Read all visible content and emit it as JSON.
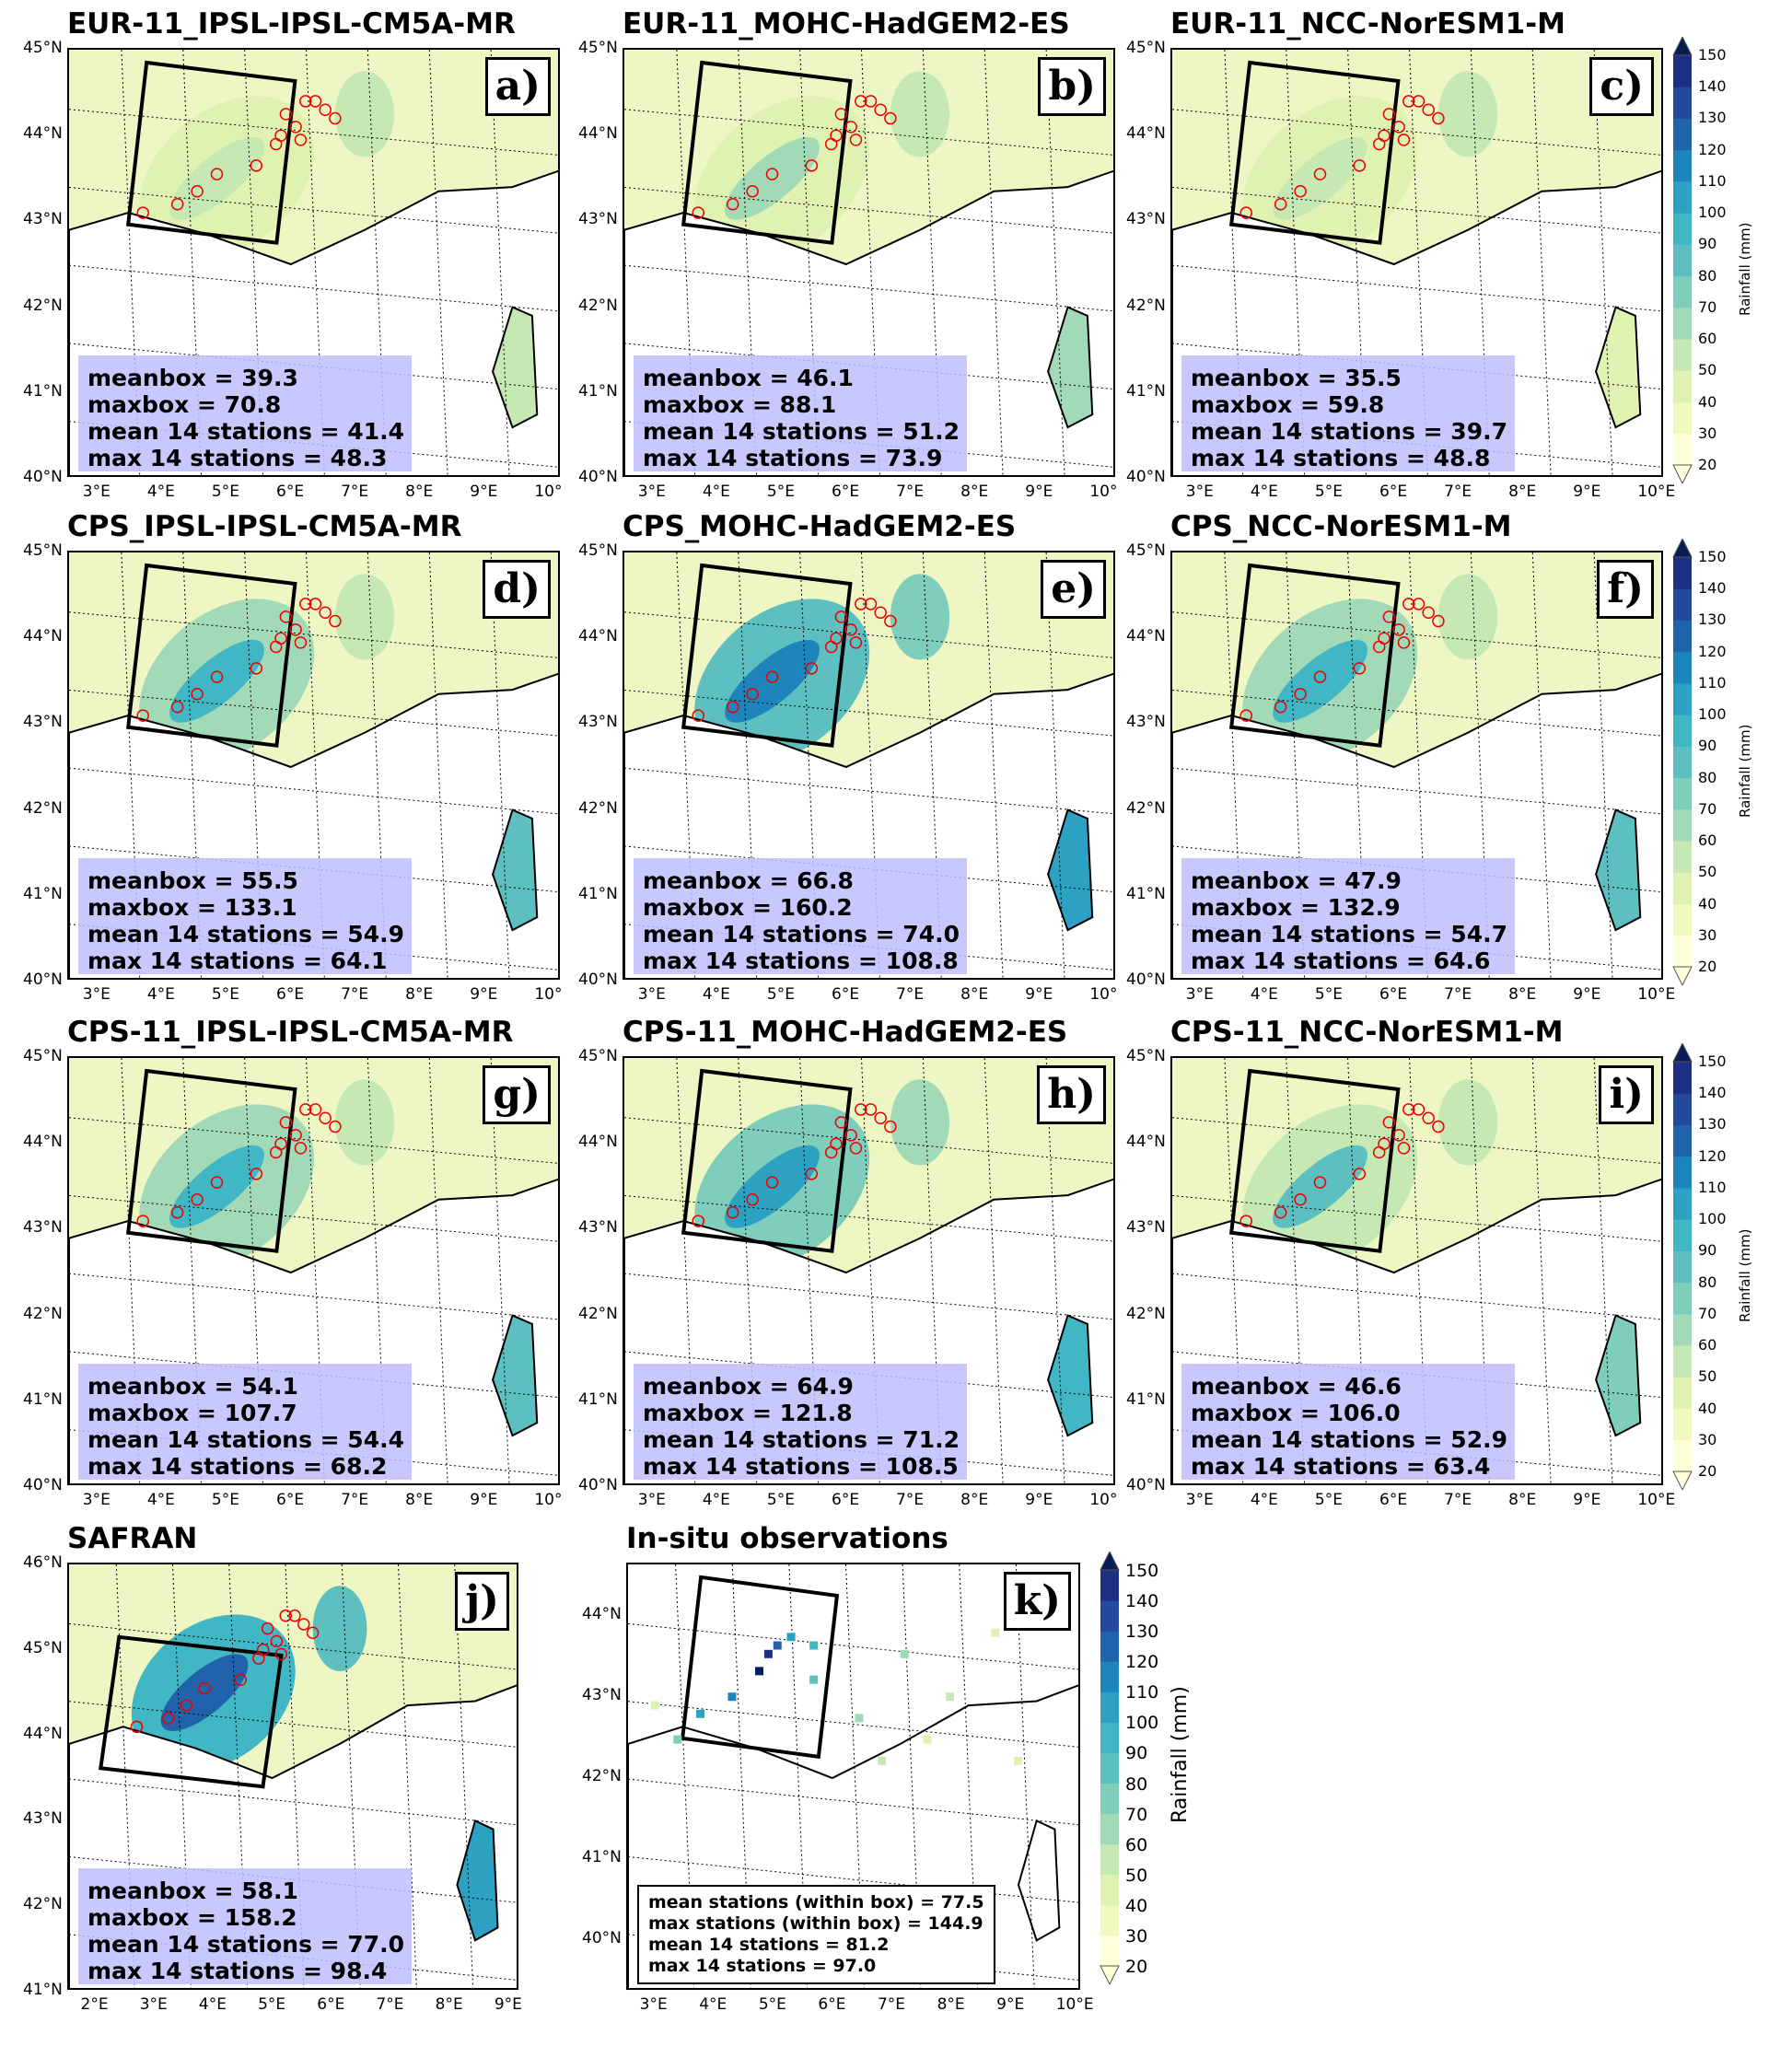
{
  "colorbar": {
    "label": "Rainfall (mm)",
    "ticks": [
      20,
      30,
      40,
      50,
      60,
      70,
      80,
      90,
      100,
      110,
      120,
      130,
      140,
      150
    ],
    "colors": [
      "#ffffd9",
      "#f1f9bf",
      "#e0f2b2",
      "#c6e9b4",
      "#a2dab7",
      "#7fcdbb",
      "#5ebfc0",
      "#41b6c4",
      "#2ca1c2",
      "#1d85bb",
      "#2163aa",
      "#234a9c",
      "#1d2f83",
      "#081d58"
    ]
  },
  "panels": [
    {
      "title": "EUR-11_IPSL-IPSL-CM5A-MR",
      "label": "a)",
      "intensity": 0.25,
      "stats": [
        "meanbox = 39.3",
        "maxbox = 70.8",
        "mean 14 stations = 41.4",
        "max 14 stations = 48.3"
      ],
      "lat": [
        "45°N",
        "44°N",
        "43°N",
        "42°N",
        "41°N",
        "40°N"
      ],
      "lon": [
        "3°E",
        "4°E",
        "5°E",
        "6°E",
        "7°E",
        "8°E",
        "9°E",
        "10°"
      ]
    },
    {
      "title": "EUR-11_MOHC-HadGEM2-ES",
      "label": "b)",
      "intensity": 0.35,
      "stats": [
        "meanbox = 46.1",
        "maxbox = 88.1",
        "mean 14 stations = 51.2",
        "max 14 stations = 73.9"
      ],
      "lat": [
        "45°N",
        "44°N",
        "43°N",
        "42°N",
        "41°N",
        "40°N"
      ],
      "lon": [
        "3°E",
        "4°E",
        "5°E",
        "6°E",
        "7°E",
        "8°E",
        "9°E",
        "10°"
      ]
    },
    {
      "title": "EUR-11_NCC-NorESM1-M",
      "label": "c)",
      "intensity": 0.2,
      "stats": [
        "meanbox = 35.5",
        "maxbox = 59.8",
        "mean 14 stations = 39.7",
        "max 14 stations = 48.8"
      ],
      "lat": [
        "45°N",
        "44°N",
        "43°N",
        "42°N",
        "41°N",
        "40°N"
      ],
      "lon": [
        "3°E",
        "4°E",
        "5°E",
        "6°E",
        "7°E",
        "8°E",
        "9°E",
        "10°E"
      ]
    },
    {
      "title": "CPS_IPSL-IPSL-CM5A-MR",
      "label": "d)",
      "intensity": 0.6,
      "stats": [
        "meanbox = 55.5",
        "maxbox = 133.1",
        "mean 14 stations = 54.9",
        "max 14 stations = 64.1"
      ],
      "lat": [
        "45°N",
        "44°N",
        "43°N",
        "42°N",
        "41°N",
        "40°N"
      ],
      "lon": [
        "3°E",
        "4°E",
        "5°E",
        "6°E",
        "7°E",
        "8°E",
        "9°E",
        "10°"
      ]
    },
    {
      "title": "CPS_MOHC-HadGEM2-ES",
      "label": "e)",
      "intensity": 0.75,
      "stats": [
        "meanbox = 66.8",
        "maxbox = 160.2",
        "mean 14 stations = 74.0",
        "max 14 stations = 108.8"
      ],
      "lat": [
        "45°N",
        "44°N",
        "43°N",
        "42°N",
        "41°N",
        "40°N"
      ],
      "lon": [
        "3°E",
        "4°E",
        "5°E",
        "6°E",
        "7°E",
        "8°E",
        "9°E",
        "10°"
      ]
    },
    {
      "title": "CPS_NCC-NorESM1-M",
      "label": "f)",
      "intensity": 0.55,
      "stats": [
        "meanbox = 47.9",
        "maxbox = 132.9",
        "mean 14 stations = 54.7",
        "max 14 stations = 64.6"
      ],
      "lat": [
        "45°N",
        "44°N",
        "43°N",
        "42°N",
        "41°N",
        "40°N"
      ],
      "lon": [
        "3°E",
        "4°E",
        "5°E",
        "6°E",
        "7°E",
        "8°E",
        "9°E",
        "10°E"
      ]
    },
    {
      "title": "CPS-11_IPSL-IPSL-CM5A-MR",
      "label": "g)",
      "intensity": 0.55,
      "stats": [
        "meanbox = 54.1",
        "maxbox = 107.7",
        "mean 14 stations = 54.4",
        "max 14 stations = 68.2"
      ],
      "lat": [
        "45°N",
        "44°N",
        "43°N",
        "42°N",
        "41°N",
        "40°N"
      ],
      "lon": [
        "3°E",
        "4°E",
        "5°E",
        "6°E",
        "7°E",
        "8°E",
        "9°E",
        "10°"
      ]
    },
    {
      "title": "CPS-11_MOHC-HadGEM2-ES",
      "label": "h)",
      "intensity": 0.7,
      "stats": [
        "meanbox = 64.9",
        "maxbox = 121.8",
        "mean 14 stations = 71.2",
        "max 14 stations = 108.5"
      ],
      "lat": [
        "45°N",
        "44°N",
        "43°N",
        "42°N",
        "41°N",
        "40°N"
      ],
      "lon": [
        "3°E",
        "4°E",
        "5°E",
        "6°E",
        "7°E",
        "8°E",
        "9°E",
        "10°"
      ]
    },
    {
      "title": "CPS-11_NCC-NorESM1-M",
      "label": "i)",
      "intensity": 0.5,
      "stats": [
        "meanbox = 46.6",
        "maxbox = 106.0",
        "mean 14 stations = 52.9",
        "max 14 stations = 63.4"
      ],
      "lat": [
        "45°N",
        "44°N",
        "43°N",
        "42°N",
        "41°N",
        "40°N"
      ],
      "lon": [
        "3°E",
        "4°E",
        "5°E",
        "6°E",
        "7°E",
        "8°E",
        "9°E",
        "10°E"
      ]
    },
    {
      "title": "SAFRAN",
      "label": "j)",
      "intensity": 0.8,
      "stats": [
        "meanbox = 58.1",
        "maxbox = 158.2",
        "mean 14 stations = 77.0",
        "max 14 stations = 98.4"
      ],
      "lat": [
        "46°N",
        "45°N",
        "44°N",
        "43°N",
        "42°N",
        "41°N"
      ],
      "lon": [
        "2°E",
        "3°E",
        "4°E",
        "5°E",
        "6°E",
        "7°E",
        "8°E",
        "9°E"
      ]
    },
    {
      "title": "In-situ observations",
      "label": "k)",
      "intensity": 0,
      "stats": [
        "mean stations (within box) = 77.5",
        "max stations (within box) = 144.9",
        "mean 14 stations = 81.2",
        "max 14 stations = 97.0"
      ],
      "lat": [
        "44°N",
        "43°N",
        "42°N",
        "41°N",
        "40°N"
      ],
      "lon": [
        "3°E",
        "4°E",
        "5°E",
        "6°E",
        "7°E",
        "8°E",
        "9°E",
        "10°E"
      ]
    }
  ]
}
